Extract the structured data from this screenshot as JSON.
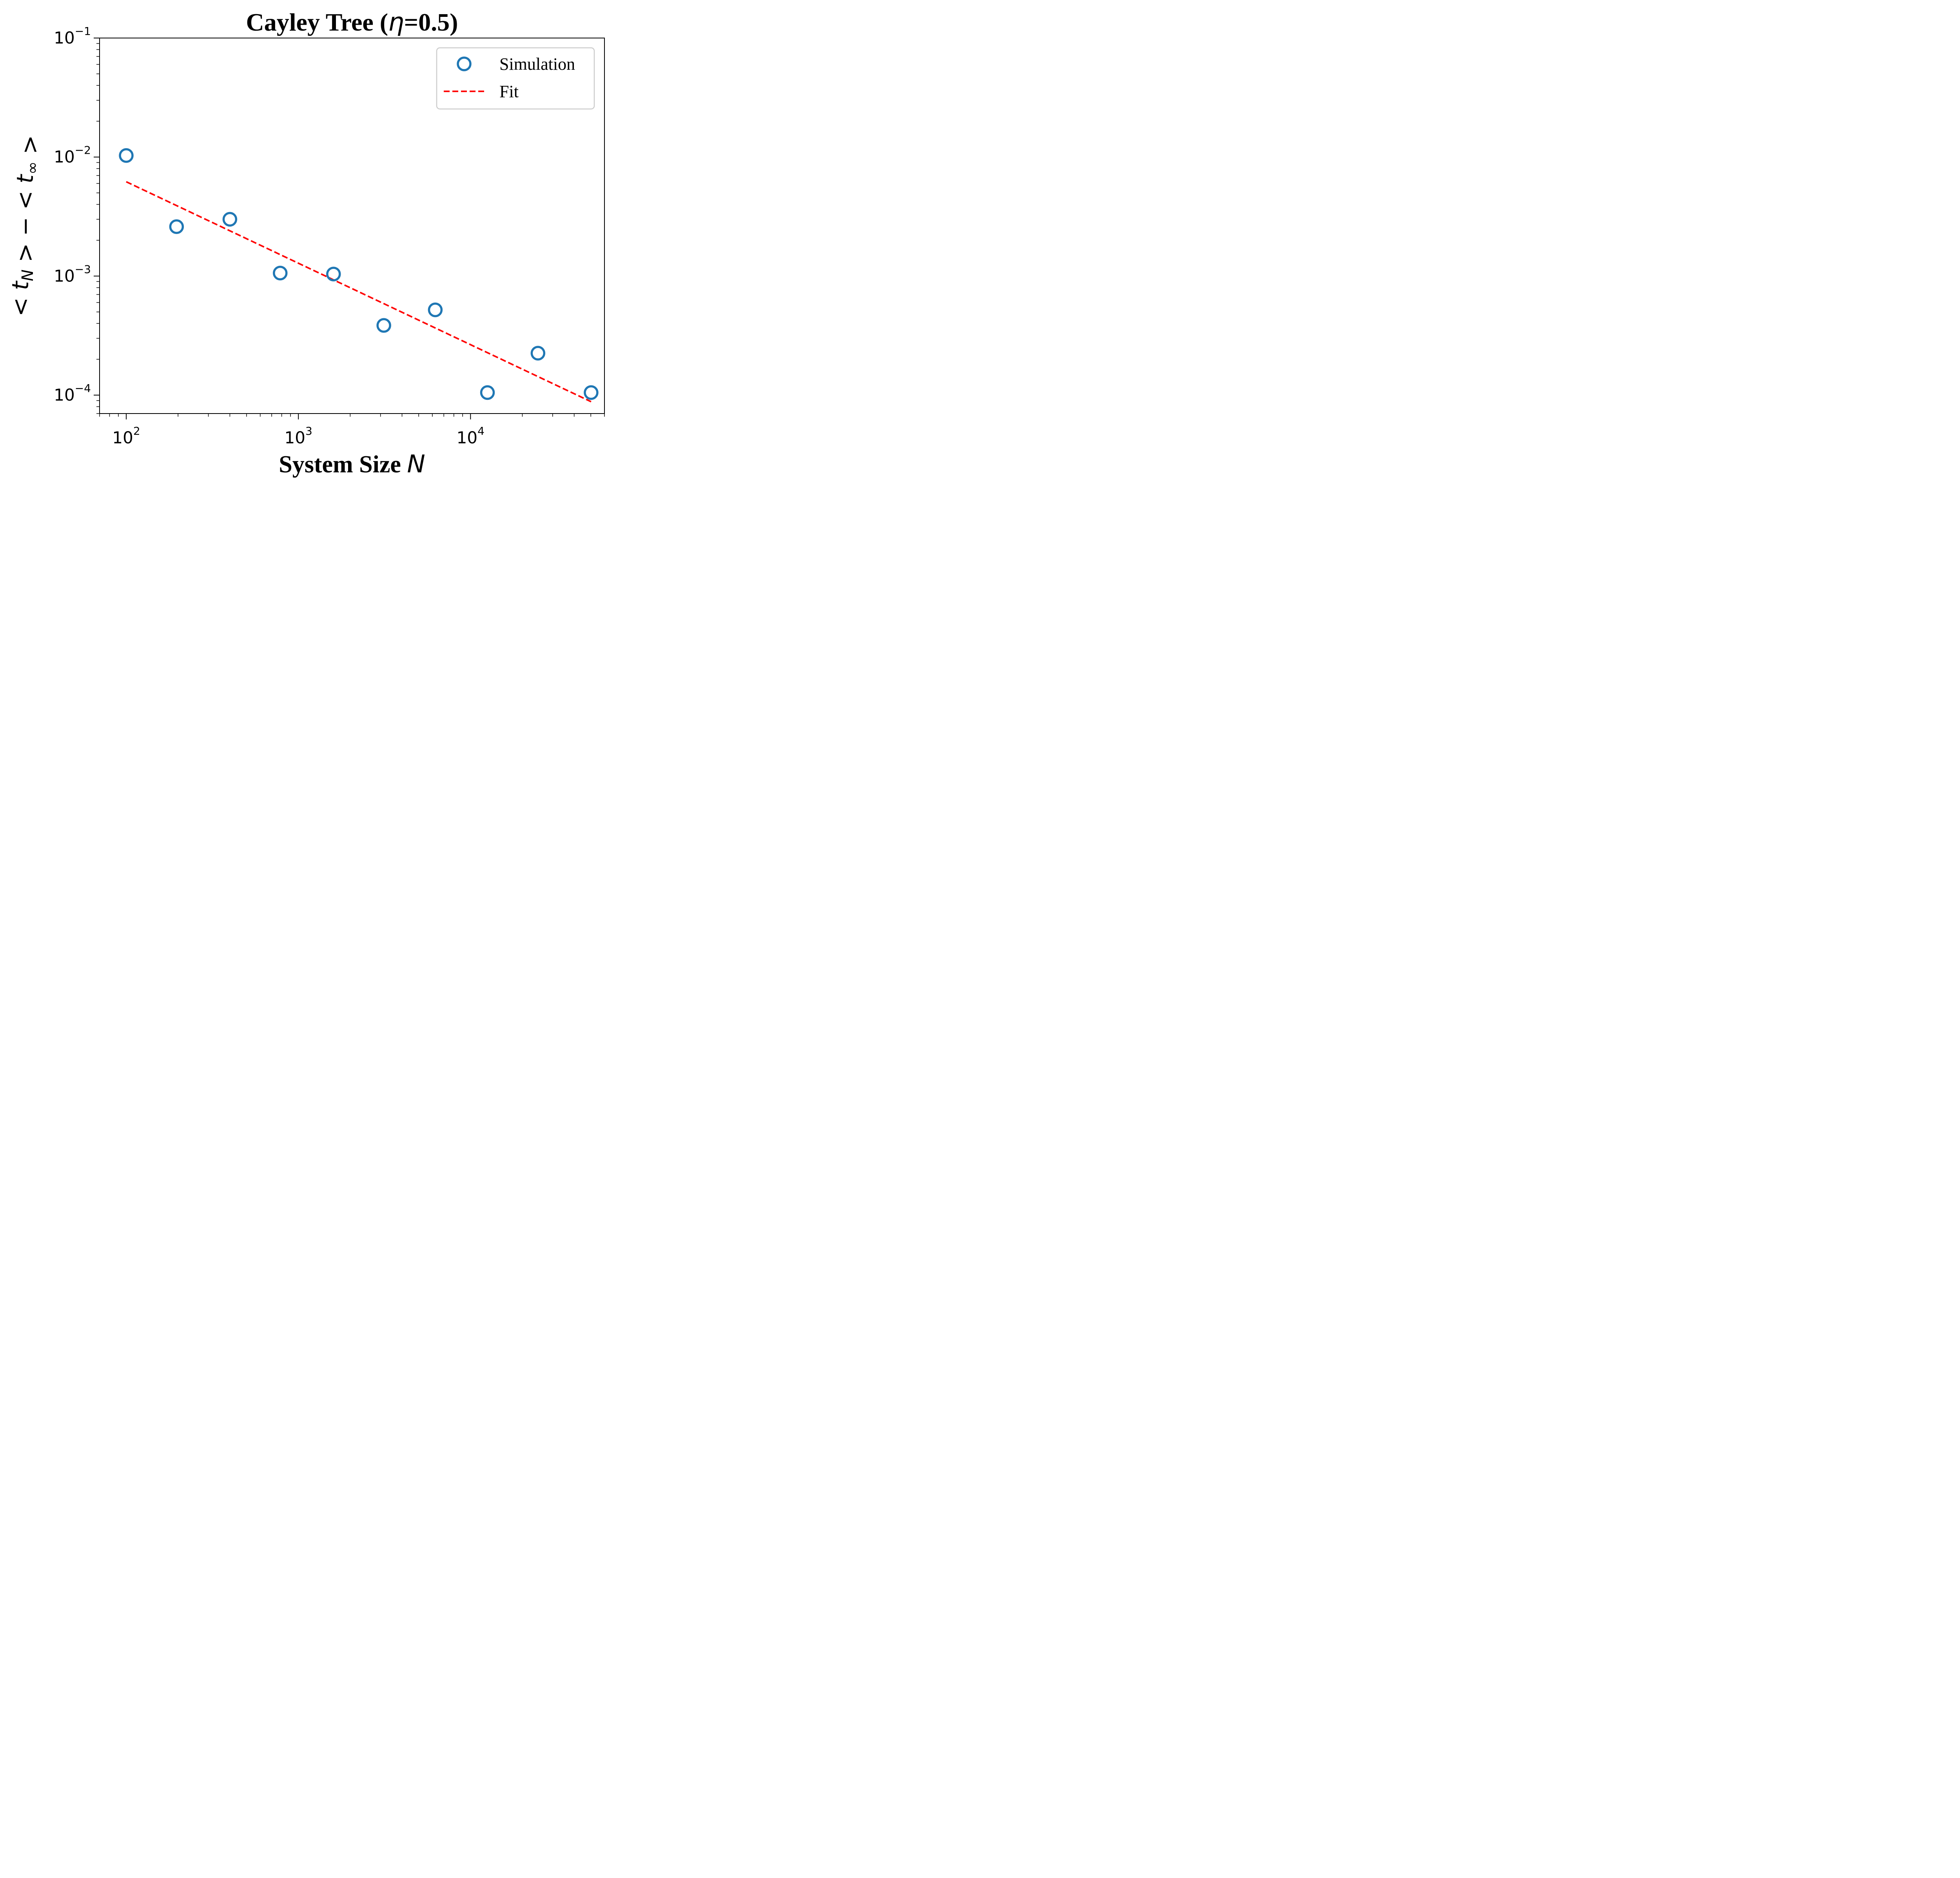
{
  "chart_data": {
    "type": "scatter",
    "title": {
      "prefix": "Cayley Tree (",
      "symbol": "η",
      "suffix": "=0.5)"
    },
    "xlabel": {
      "text": "System Size ",
      "symbol": "N"
    },
    "ylabel": "< t_N > − < t_∞ >",
    "xscale": "log",
    "yscale": "log",
    "xlim": [
      70,
      60000
    ],
    "ylim": [
      7e-05,
      0.1
    ],
    "grid": false,
    "legend_position": "top-right",
    "x_ticks": [
      {
        "base": "10",
        "exp": "2",
        "value": 100
      },
      {
        "base": "10",
        "exp": "3",
        "value": 1000
      },
      {
        "base": "10",
        "exp": "4",
        "value": 10000
      }
    ],
    "y_ticks": [
      {
        "base": "10",
        "exp": "−4",
        "value": 0.0001
      },
      {
        "base": "10",
        "exp": "−3",
        "value": 0.001
      },
      {
        "base": "10",
        "exp": "−2",
        "value": 0.01
      },
      {
        "base": "10",
        "exp": "−1",
        "value": 0.1
      }
    ],
    "series": [
      {
        "name": "Simulation",
        "kind": "scatter",
        "marker": "open-circle",
        "color": "#1f77b4",
        "x": [
          100,
          196,
          400,
          784,
          1600,
          3136,
          6241,
          12544,
          24649,
          50176
        ],
        "y": [
          0.0103,
          0.0026,
          0.003,
          0.00106,
          0.00104,
          0.000385,
          0.00052,
          0.000105,
          0.000225,
          0.000105
        ]
      },
      {
        "name": "Fit",
        "kind": "line",
        "dash": "dashed",
        "color": "#ff0000",
        "x": [
          100,
          50176
        ],
        "y": [
          0.0062,
          8.8e-05
        ]
      }
    ]
  }
}
